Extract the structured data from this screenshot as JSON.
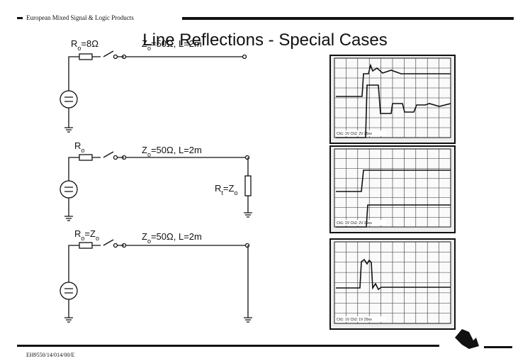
{
  "header": {
    "section": "European Mixed Signal & Logic Products",
    "title": "Line Reflections - Special Cases"
  },
  "circuits": [
    {
      "source_resistor": [
        "R",
        "o",
        "=8Ω"
      ],
      "line": [
        "Z",
        "o",
        "=50Ω, L=2m"
      ]
    },
    {
      "source_resistor": [
        "R",
        "o"
      ],
      "line": [
        "Z",
        "o",
        "=50Ω, L=2m"
      ],
      "termination": [
        "R",
        "t",
        "=Z",
        "o"
      ]
    },
    {
      "source_resistor": [
        "R",
        "o",
        "=Z",
        "o"
      ],
      "line": [
        "Z",
        "o",
        "=50Ω, L=2m"
      ]
    }
  ],
  "scopes": [
    {
      "settings": "Ch1: 2V  Ch2: 2V    25ns"
    },
    {
      "settings": "Ch1: 2V  Ch2: 2V    25ns"
    },
    {
      "settings": "Ch1: 1V  Ch2: 1V    25ns"
    }
  ],
  "footer": {
    "code": "EH9550/14/014/00/E"
  }
}
